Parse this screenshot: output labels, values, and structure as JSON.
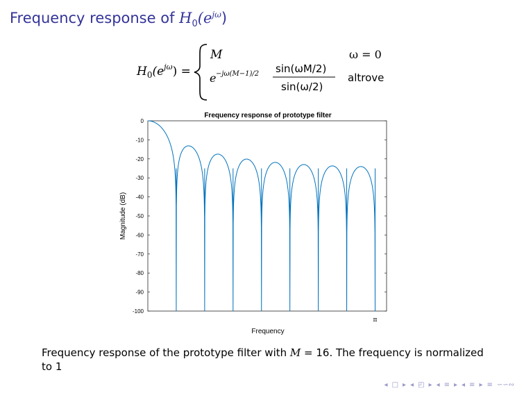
{
  "slide": {
    "title_text": "Frequency response of",
    "title_math": "H",
    "title_sub": "0",
    "title_arg": "(e",
    "title_sup": "jω",
    "title_close": ")"
  },
  "equation": {
    "lhs": "H",
    "lhs_sub": "0",
    "lhs_arg": "(e",
    "lhs_sup": "jω",
    "lhs_close": ") =",
    "case1_value": "M",
    "case1_condition": "ω = 0",
    "case2_exp_base": "e",
    "case2_exp": "−jω(M−1)/2",
    "case2_num": "sin(ωM/2)",
    "case2_den": "sin(ω/2)",
    "case2_condition": "altrove"
  },
  "chart_data": {
    "type": "line",
    "title": "Frequency response of prototype filter",
    "xlabel": "Frequency",
    "ylabel": "Magnitude (dB)",
    "ylim": [
      -100,
      0
    ],
    "xlim": [
      0,
      3.3
    ],
    "yticks": [
      0,
      -10,
      -20,
      -30,
      -40,
      -50,
      -60,
      -70,
      -80,
      -90,
      -100
    ],
    "xticks": [
      {
        "value": 3.14159,
        "label": "π"
      }
    ],
    "grid": false,
    "series": [
      {
        "M": 16,
        "color": "#0072bd"
      }
    ]
  },
  "caption": {
    "text1": "Frequency response of the prototype filter with",
    "math": "M",
    "text2": "= 16. The frequency is normalized to 1"
  },
  "nav": {
    "symbols": [
      "◂",
      "□",
      "▸",
      "◂",
      "◰",
      "▸",
      "◂",
      "≡",
      "▸",
      "◂",
      "≡",
      "▸",
      "≡",
      "∽∽∾"
    ]
  }
}
